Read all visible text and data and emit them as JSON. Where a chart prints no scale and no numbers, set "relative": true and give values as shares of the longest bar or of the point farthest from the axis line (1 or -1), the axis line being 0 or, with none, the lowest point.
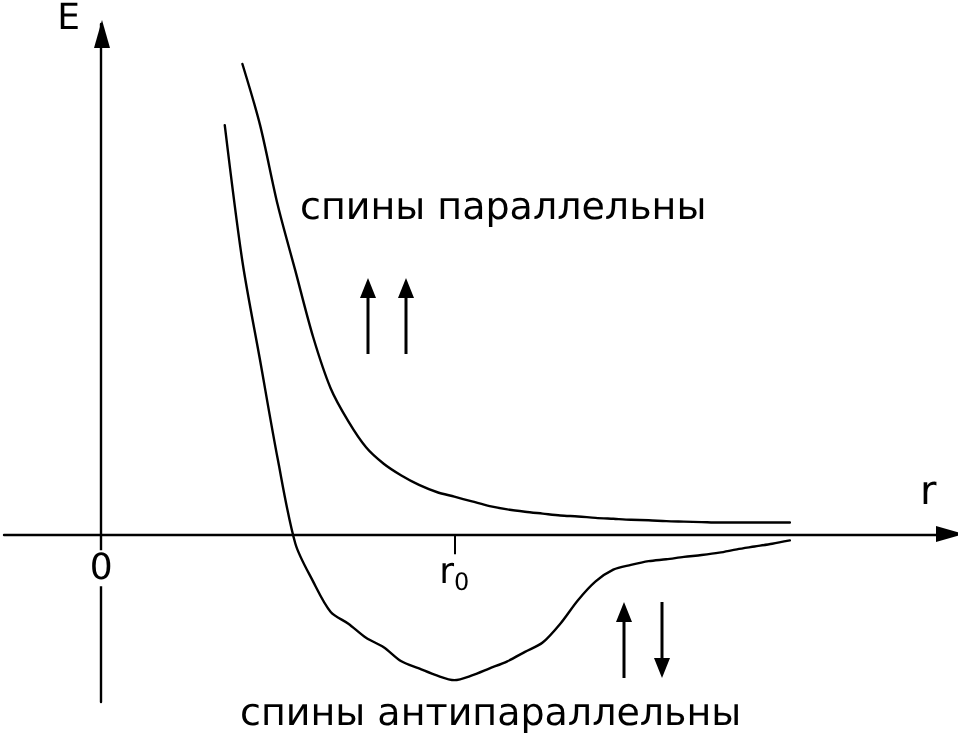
{
  "chart_data": {
    "type": "line",
    "relative": true,
    "xlabel": "r",
    "ylabel": "E",
    "categories": [
      null,
      null,
      null,
      null,
      null,
      "0",
      null,
      null,
      null,
      null,
      null,
      null,
      null,
      null,
      null,
      null,
      null,
      null,
      null,
      null,
      null,
      null,
      null,
      null,
      null,
      "r$_{0}$",
      null,
      null,
      null,
      null,
      null,
      null,
      null,
      null,
      null,
      null,
      null,
      null,
      null,
      null,
      null,
      null,
      null,
      null,
      null,
      null,
      null,
      null,
      null,
      null,
      null,
      null,
      null
    ],
    "marker": "none",
    "line_style": "solid",
    "annotations": [
      "спины параллельны",
      "спины антипараллельны"
    ],
    "series": [
      {
        "color": "#000000",
        "values": [
          null,
          null,
          null,
          null,
          null,
          null,
          null,
          null,
          null,
          null,
          null,
          null,
          null,
          1,
          0.87,
          0.7,
          0.56,
          0.42,
          0.31,
          0.24,
          0.185,
          0.15,
          0.125,
          0.105,
          0.09,
          0.08,
          0.07,
          0.06,
          0.053,
          0.048,
          0.044,
          0.04,
          0.038,
          0.035,
          0.033,
          0.031,
          0.03,
          0.028,
          0.027,
          0.026,
          0.025,
          0.025,
          0.025,
          0.025,
          0.025,
          null,
          null,
          null,
          null,
          null,
          null,
          null,
          null
        ]
      },
      {
        "color": "#000000",
        "values": [
          null,
          null,
          null,
          null,
          null,
          null,
          null,
          null,
          null,
          null,
          null,
          null,
          0.87,
          0.58,
          0.37,
          0.16,
          -0.02,
          -0.1,
          -0.165,
          -0.19,
          -0.22,
          -0.24,
          -0.27,
          -0.285,
          -0.3,
          -0.31,
          -0.3,
          -0.285,
          -0.27,
          -0.25,
          -0.23,
          -0.19,
          -0.14,
          -0.1,
          -0.075,
          -0.065,
          -0.057,
          -0.053,
          -0.048,
          -0.044,
          -0.039,
          -0.032,
          -0.026,
          -0.02,
          -0.013,
          null,
          null,
          null,
          null,
          null,
          null,
          null,
          null
        ]
      }
    ]
  }
}
